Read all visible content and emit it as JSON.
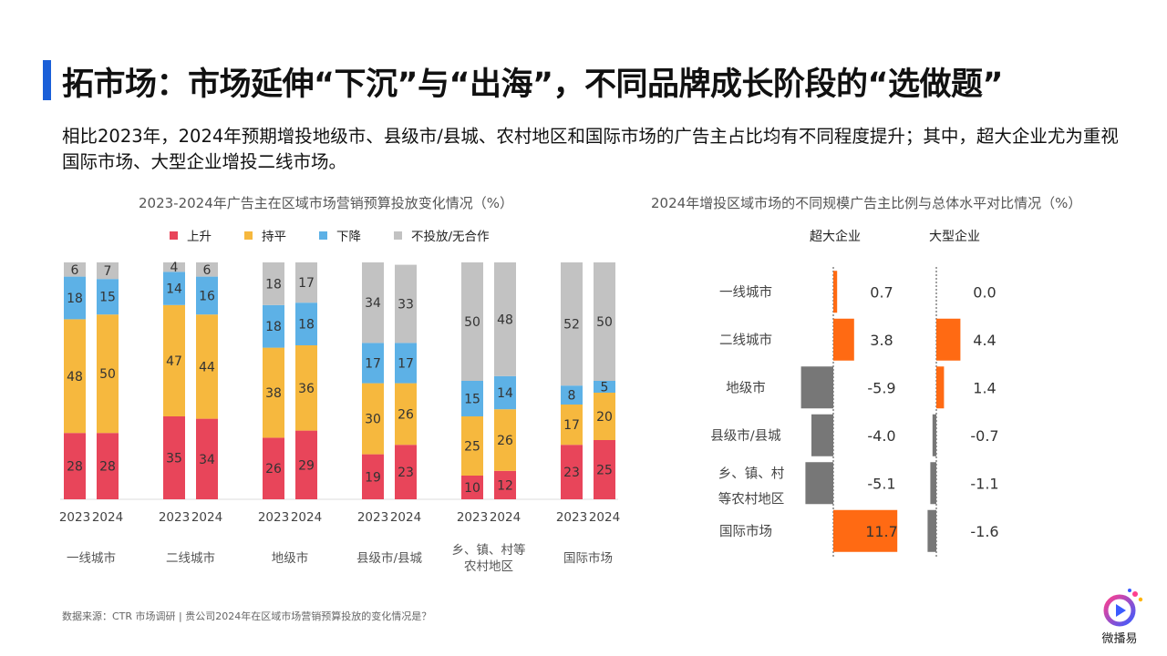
{
  "header": {
    "title": "拓市场：市场延伸“下沉”与“出海”，不同品牌成长阶段的“选做题”",
    "subtitle": "相比2023年，2024年预期增投地级市、县级市/县城、农村地区和国际市场的广告主占比均有不同程度提升；其中，超大企业尤为重视国际市场、大型企业增投二线市场。"
  },
  "footer": {
    "source": "数据来源：CTR 市场调研 |   贵公司2024年在区域市场营销预算投放的变化情况是？"
  },
  "logo": {
    "text": "微播易"
  },
  "colors": {
    "up": "#e8455a",
    "flat": "#f6b83e",
    "down": "#5db1e6",
    "none": "#c2c2c2",
    "positive": "#ff6a13",
    "negative": "#777777"
  },
  "chart_data": [
    {
      "type": "bar",
      "stacked": true,
      "title": "2023-2024年广告主在区域市场营销预算投放变化情况（%）",
      "x_years": [
        "2023",
        "2024"
      ],
      "categories": [
        "一线城市",
        "二线城市",
        "地级市",
        "县级市/县城",
        "乡、镇、村等农村地区",
        "国际市场"
      ],
      "legend": [
        "上升",
        "持平",
        "下降",
        "不投放/无合作"
      ],
      "legend_position": "top",
      "ylim": [
        0,
        100
      ],
      "series": [
        {
          "name": "上升",
          "values": [
            [
              28,
              28
            ],
            [
              35,
              34
            ],
            [
              26,
              29
            ],
            [
              19,
              23
            ],
            [
              10,
              12
            ],
            [
              23,
              25
            ]
          ]
        },
        {
          "name": "持平",
          "values": [
            [
              48,
              50
            ],
            [
              47,
              44
            ],
            [
              38,
              36
            ],
            [
              30,
              26
            ],
            [
              25,
              26
            ],
            [
              17,
              20
            ]
          ]
        },
        {
          "name": "下降",
          "values": [
            [
              18,
              15
            ],
            [
              14,
              16
            ],
            [
              18,
              18
            ],
            [
              17,
              17
            ],
            [
              15,
              14
            ],
            [
              8,
              5
            ]
          ]
        },
        {
          "name": "不投放/无合作",
          "values": [
            [
              6,
              7
            ],
            [
              4,
              6
            ],
            [
              18,
              17
            ],
            [
              34,
              33
            ],
            [
              50,
              48
            ],
            [
              52,
              50
            ]
          ]
        }
      ]
    },
    {
      "type": "bar",
      "orientation": "horizontal",
      "title": "2024年增投区域市场的不同规模广告主比例与总体水平对比情况（%）",
      "categories": [
        "一线城市",
        "二线城市",
        "地级市",
        "县级市/县城",
        "乡、镇、村等农村地区",
        "国际市场"
      ],
      "series": [
        {
          "name": "超大企业",
          "values": [
            0.7,
            3.8,
            -5.9,
            -4.0,
            -5.1,
            11.7
          ],
          "labels": [
            "0.7",
            "3.8",
            "-5.9",
            "-4.0",
            "-5.1",
            "11.7"
          ]
        },
        {
          "name": "大型企业",
          "values": [
            0.0,
            4.4,
            1.4,
            -0.7,
            -1.1,
            -1.6
          ],
          "labels": [
            "0.0",
            "4.4",
            "1.4",
            "-0.7",
            "-1.1",
            "-1.6"
          ]
        }
      ]
    }
  ]
}
